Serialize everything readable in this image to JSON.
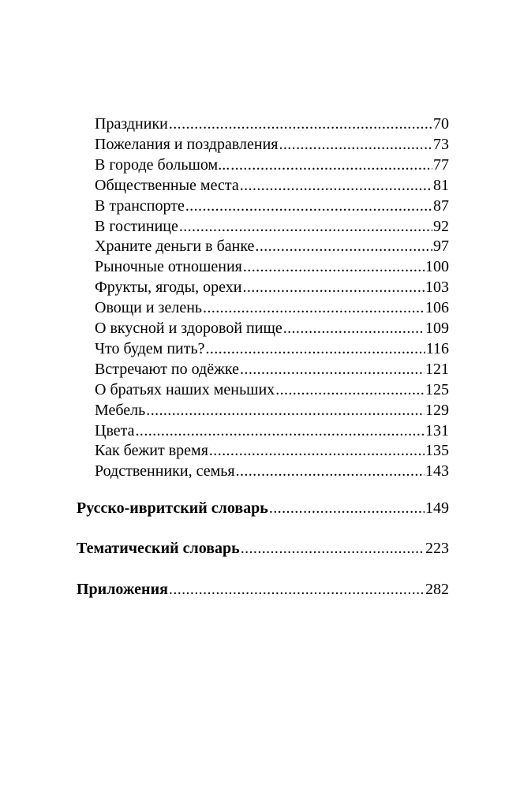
{
  "entries": [
    {
      "title": "Праздники",
      "page": "70"
    },
    {
      "title": "Пожелания и поздравления",
      "page": "73"
    },
    {
      "title": "В городе большом...",
      "page": "77"
    },
    {
      "title": "Общественные места",
      "page": "81"
    },
    {
      "title": "В транспорте",
      "page": "87"
    },
    {
      "title": "В гостинице",
      "page": "92"
    },
    {
      "title": "Храните деньги в банке",
      "page": "97"
    },
    {
      "title": "Рыночные отношения",
      "page": "100"
    },
    {
      "title": "Фрукты, ягоды, орехи",
      "page": "103"
    },
    {
      "title": "Овощи и зелень",
      "page": "106"
    },
    {
      "title": "О вкусной и здоровой пище",
      "page": "109"
    },
    {
      "title": "Что будем пить?",
      "page": "116"
    },
    {
      "title": "Встречают по одёжке",
      "page": "121"
    },
    {
      "title": "О братьях наших меньших",
      "page": "125"
    },
    {
      "title": "Мебель",
      "page": "129"
    },
    {
      "title": "Цвета",
      "page": "131"
    },
    {
      "title": "Как бежит время",
      "page": "135"
    },
    {
      "title": "Родственники, семья",
      "page": "143"
    }
  ],
  "sections": [
    {
      "title": "Русско-ивритский словарь",
      "page": "149"
    },
    {
      "title": "Тематический словарь",
      "page": "223"
    },
    {
      "title": "Приложения",
      "page": "282"
    }
  ]
}
